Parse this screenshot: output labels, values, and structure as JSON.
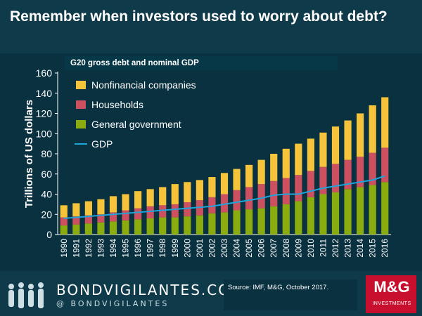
{
  "page": {
    "title": "Remember when investors used to worry about debt?",
    "brand": "BONDVIGILANTES.COM",
    "handle": "@ BONDVIGILANTES",
    "source": "Source: IMF,  M&G, October 2017.",
    "logo_text": "M&G",
    "logo_sub": "INVESTMENTS",
    "colors": {
      "background": "#0e3a4a",
      "general_government": "#8aac0f",
      "households": "#cc5060",
      "nonfinancial": "#f6c43a",
      "gdp": "#1ea5dc",
      "logo": "#c8102e"
    }
  },
  "chart_data": {
    "type": "bar",
    "stacked": true,
    "title": "G20 gross debt and nominal GDP",
    "xlabel": "",
    "ylabel": "Trillions of US dollars",
    "ylim": [
      0,
      160
    ],
    "yticks": [
      0,
      20,
      40,
      60,
      80,
      100,
      120,
      140,
      160
    ],
    "categories": [
      "1990",
      "1991",
      "1992",
      "1993",
      "1994",
      "1995",
      "1996",
      "1997",
      "1998",
      "1999",
      "2000",
      "2001",
      "2002",
      "2003",
      "2004",
      "2005",
      "2006",
      "2007",
      "2008",
      "2009",
      "2010",
      "2011",
      "2012",
      "2013",
      "2014",
      "2015",
      "2016"
    ],
    "series": [
      {
        "name": "General government",
        "kind": "bar",
        "values": [
          9,
          10,
          11,
          12,
          13,
          14,
          15,
          16,
          17,
          17,
          18,
          19,
          21,
          22,
          24,
          25,
          26,
          28,
          30,
          33,
          37,
          40,
          42,
          45,
          47,
          49,
          52
        ]
      },
      {
        "name": "Households",
        "kind": "bar",
        "values": [
          8,
          8,
          8,
          8,
          9,
          10,
          11,
          12,
          12,
          13,
          14,
          15,
          16,
          18,
          20,
          22,
          24,
          25,
          26,
          26,
          26,
          27,
          28,
          29,
          30,
          32,
          34
        ]
      },
      {
        "name": "Nonfinancial companies",
        "kind": "bar",
        "values": [
          12,
          13,
          14,
          15,
          16,
          16,
          17,
          17,
          18,
          20,
          20,
          20,
          20,
          21,
          21,
          22,
          24,
          27,
          29,
          31,
          32,
          34,
          37,
          39,
          43,
          47,
          50
        ]
      },
      {
        "name": "GDP",
        "kind": "line",
        "values": [
          16,
          17,
          18,
          19,
          20,
          21,
          22,
          23,
          24,
          25,
          26,
          27,
          28,
          30,
          32,
          34,
          36,
          39,
          40,
          40,
          43,
          46,
          48,
          50,
          52,
          54,
          58
        ]
      }
    ],
    "legend": [
      "Nonfinancial companies",
      "Households",
      "General government",
      "GDP"
    ],
    "legend_position": "top-left",
    "grid": false
  }
}
